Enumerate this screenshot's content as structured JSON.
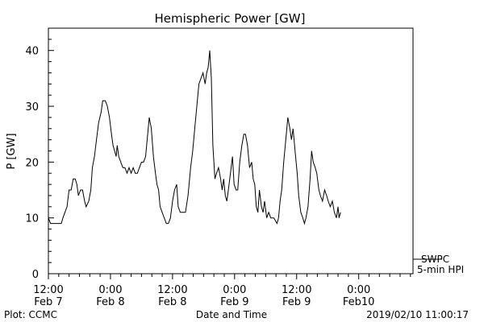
{
  "chart_data": {
    "type": "line",
    "title": "Hemispheric Power [GW]",
    "xlabel": "Date and Time",
    "ylabel": "P [GW]",
    "ylim": [
      0,
      44
    ],
    "yticks": [
      0,
      10,
      20,
      30,
      40
    ],
    "xticks": [
      {
        "time": "12:00",
        "date": "Feb 7"
      },
      {
        "time": "0:00",
        "date": "Feb 8"
      },
      {
        "time": "12:00",
        "date": "Feb 8"
      },
      {
        "time": "0:00",
        "date": "Feb 9"
      },
      {
        "time": "12:00",
        "date": "Feb 9"
      },
      {
        "time": "0:00",
        "date": "Feb10"
      }
    ],
    "x_units": "hours from Feb 7 12:00",
    "xlim": [
      0,
      70.5
    ],
    "legend": {
      "line1": "SWPC",
      "line2": "5-min HPI"
    },
    "series": [
      {
        "name": "SWPC 5-min HPI",
        "points": [
          [
            0,
            10
          ],
          [
            0.4,
            9
          ],
          [
            2.5,
            9
          ],
          [
            2.8,
            10
          ],
          [
            3.2,
            11
          ],
          [
            3.6,
            12
          ],
          [
            4.0,
            15
          ],
          [
            4.4,
            15
          ],
          [
            4.8,
            17
          ],
          [
            5.2,
            17
          ],
          [
            5.5,
            16
          ],
          [
            5.8,
            14
          ],
          [
            6.2,
            15
          ],
          [
            6.6,
            15
          ],
          [
            7.0,
            13
          ],
          [
            7.3,
            12
          ],
          [
            7.8,
            13
          ],
          [
            8.2,
            15
          ],
          [
            8.5,
            19
          ],
          [
            8.9,
            21
          ],
          [
            9.3,
            24
          ],
          [
            9.7,
            27
          ],
          [
            10.2,
            29
          ],
          [
            10.5,
            31
          ],
          [
            11.0,
            31
          ],
          [
            11.4,
            30
          ],
          [
            11.8,
            28
          ],
          [
            12.2,
            25
          ],
          [
            12.5,
            23
          ],
          [
            12.8,
            22
          ],
          [
            13.1,
            21
          ],
          [
            13.3,
            23
          ],
          [
            13.6,
            21
          ],
          [
            14.0,
            20
          ],
          [
            14.4,
            19
          ],
          [
            14.8,
            19
          ],
          [
            15.2,
            18
          ],
          [
            15.6,
            19
          ],
          [
            16.0,
            18
          ],
          [
            16.4,
            19
          ],
          [
            16.8,
            18
          ],
          [
            17.2,
            18
          ],
          [
            17.6,
            19
          ],
          [
            18.0,
            20
          ],
          [
            18.4,
            20
          ],
          [
            18.8,
            21
          ],
          [
            19.2,
            25
          ],
          [
            19.5,
            28
          ],
          [
            19.9,
            26
          ],
          [
            20.3,
            21
          ],
          [
            20.7,
            18
          ],
          [
            21.0,
            16
          ],
          [
            21.3,
            15
          ],
          [
            21.6,
            12
          ],
          [
            22.0,
            11
          ],
          [
            22.4,
            10
          ],
          [
            22.8,
            9
          ],
          [
            23.2,
            9
          ],
          [
            23.6,
            10
          ],
          [
            24.0,
            13
          ],
          [
            24.4,
            15
          ],
          [
            24.8,
            16
          ],
          [
            25.1,
            12
          ],
          [
            25.5,
            11
          ],
          [
            26.0,
            11
          ],
          [
            26.5,
            11
          ],
          [
            27.0,
            14
          ],
          [
            27.5,
            19
          ],
          [
            27.9,
            22
          ],
          [
            28.3,
            26
          ],
          [
            28.7,
            30
          ],
          [
            29.1,
            34
          ],
          [
            29.5,
            35
          ],
          [
            29.9,
            36
          ],
          [
            30.3,
            34
          ],
          [
            30.6,
            36
          ],
          [
            30.9,
            37
          ],
          [
            31.2,
            40
          ],
          [
            31.5,
            35
          ],
          [
            31.8,
            23
          ],
          [
            32.2,
            17
          ],
          [
            32.5,
            18
          ],
          [
            32.9,
            19
          ],
          [
            33.3,
            17
          ],
          [
            33.6,
            15
          ],
          [
            33.9,
            17
          ],
          [
            34.2,
            14
          ],
          [
            34.5,
            13
          ],
          [
            34.8,
            15
          ],
          [
            35.2,
            18
          ],
          [
            35.6,
            21
          ],
          [
            35.9,
            16
          ],
          [
            36.3,
            15
          ],
          [
            36.6,
            15
          ],
          [
            37.0,
            20
          ],
          [
            37.4,
            23
          ],
          [
            37.8,
            25
          ],
          [
            38.1,
            25
          ],
          [
            38.5,
            23
          ],
          [
            38.9,
            19
          ],
          [
            39.3,
            20
          ],
          [
            39.6,
            17
          ],
          [
            39.9,
            16
          ],
          [
            40.2,
            12
          ],
          [
            40.5,
            11
          ],
          [
            40.8,
            15
          ],
          [
            41.2,
            12
          ],
          [
            41.5,
            11
          ],
          [
            41.8,
            13
          ],
          [
            42.2,
            10
          ],
          [
            42.6,
            11
          ],
          [
            43.0,
            10
          ],
          [
            43.6,
            10
          ],
          [
            44.2,
            9
          ],
          [
            44.5,
            10
          ],
          [
            44.8,
            13
          ],
          [
            45.1,
            15
          ],
          [
            45.5,
            20
          ],
          [
            45.9,
            24
          ],
          [
            46.3,
            28
          ],
          [
            46.7,
            26
          ],
          [
            47.0,
            24
          ],
          [
            47.3,
            26
          ],
          [
            47.7,
            22
          ],
          [
            48.1,
            18
          ],
          [
            48.4,
            14
          ],
          [
            48.8,
            11
          ],
          [
            49.2,
            10
          ],
          [
            49.5,
            9
          ],
          [
            49.8,
            10
          ],
          [
            50.2,
            12
          ],
          [
            50.6,
            17
          ],
          [
            50.9,
            22
          ],
          [
            51.2,
            20
          ],
          [
            51.6,
            19
          ],
          [
            51.9,
            18
          ],
          [
            52.3,
            15
          ],
          [
            52.6,
            14
          ],
          [
            53.0,
            13
          ],
          [
            53.4,
            15
          ],
          [
            53.8,
            14
          ],
          [
            54.1,
            13
          ],
          [
            54.5,
            12
          ],
          [
            54.9,
            13
          ],
          [
            55.3,
            11
          ],
          [
            55.7,
            10
          ],
          [
            56.0,
            12
          ],
          [
            56.2,
            10
          ],
          [
            56.5,
            11
          ]
        ]
      }
    ],
    "grid": false
  },
  "footer": {
    "left": "Plot: CCMC",
    "right": "2019/02/10 11:00:17"
  }
}
